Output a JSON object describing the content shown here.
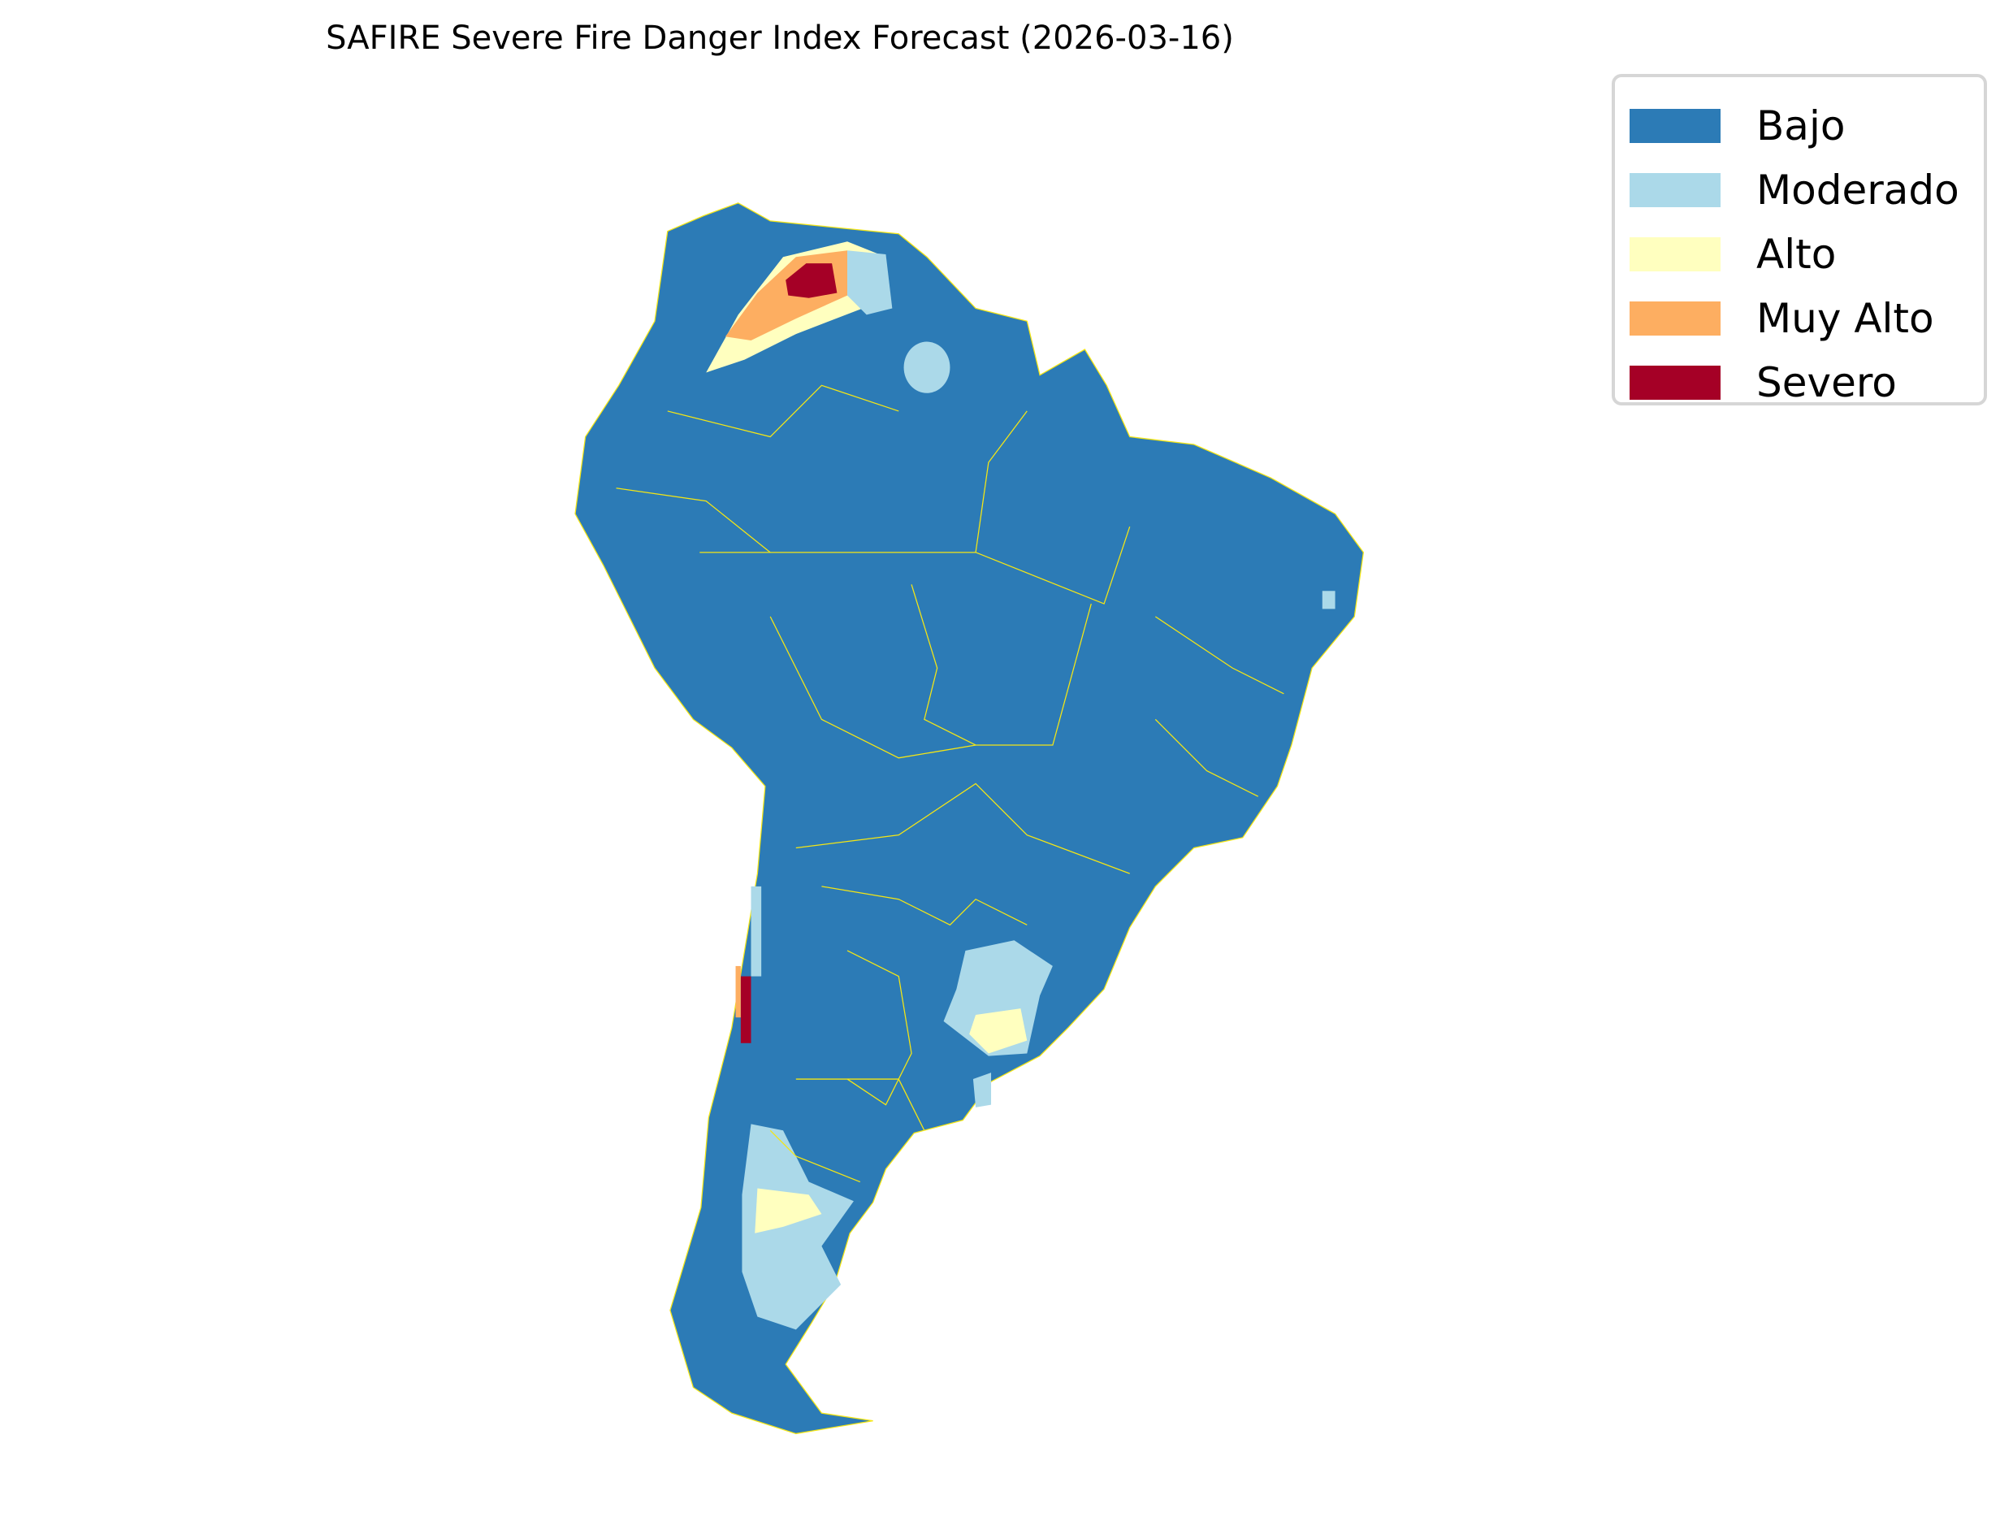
{
  "title": "SAFIRE Severe Fire Danger Index Forecast (2026-03-16)",
  "map": {
    "region": "South America",
    "border_color": "#f5e614",
    "dominant_class": "Bajo"
  },
  "legend": {
    "placement": "top-right",
    "items": [
      {
        "label": "Bajo",
        "color": "#2c7bb6"
      },
      {
        "label": "Moderado",
        "color": "#abd9e9"
      },
      {
        "label": "Alto",
        "color": "#ffffbf"
      },
      {
        "label": "Muy Alto",
        "color": "#fdae61"
      },
      {
        "label": "Severo",
        "color": "#a50026"
      }
    ]
  }
}
